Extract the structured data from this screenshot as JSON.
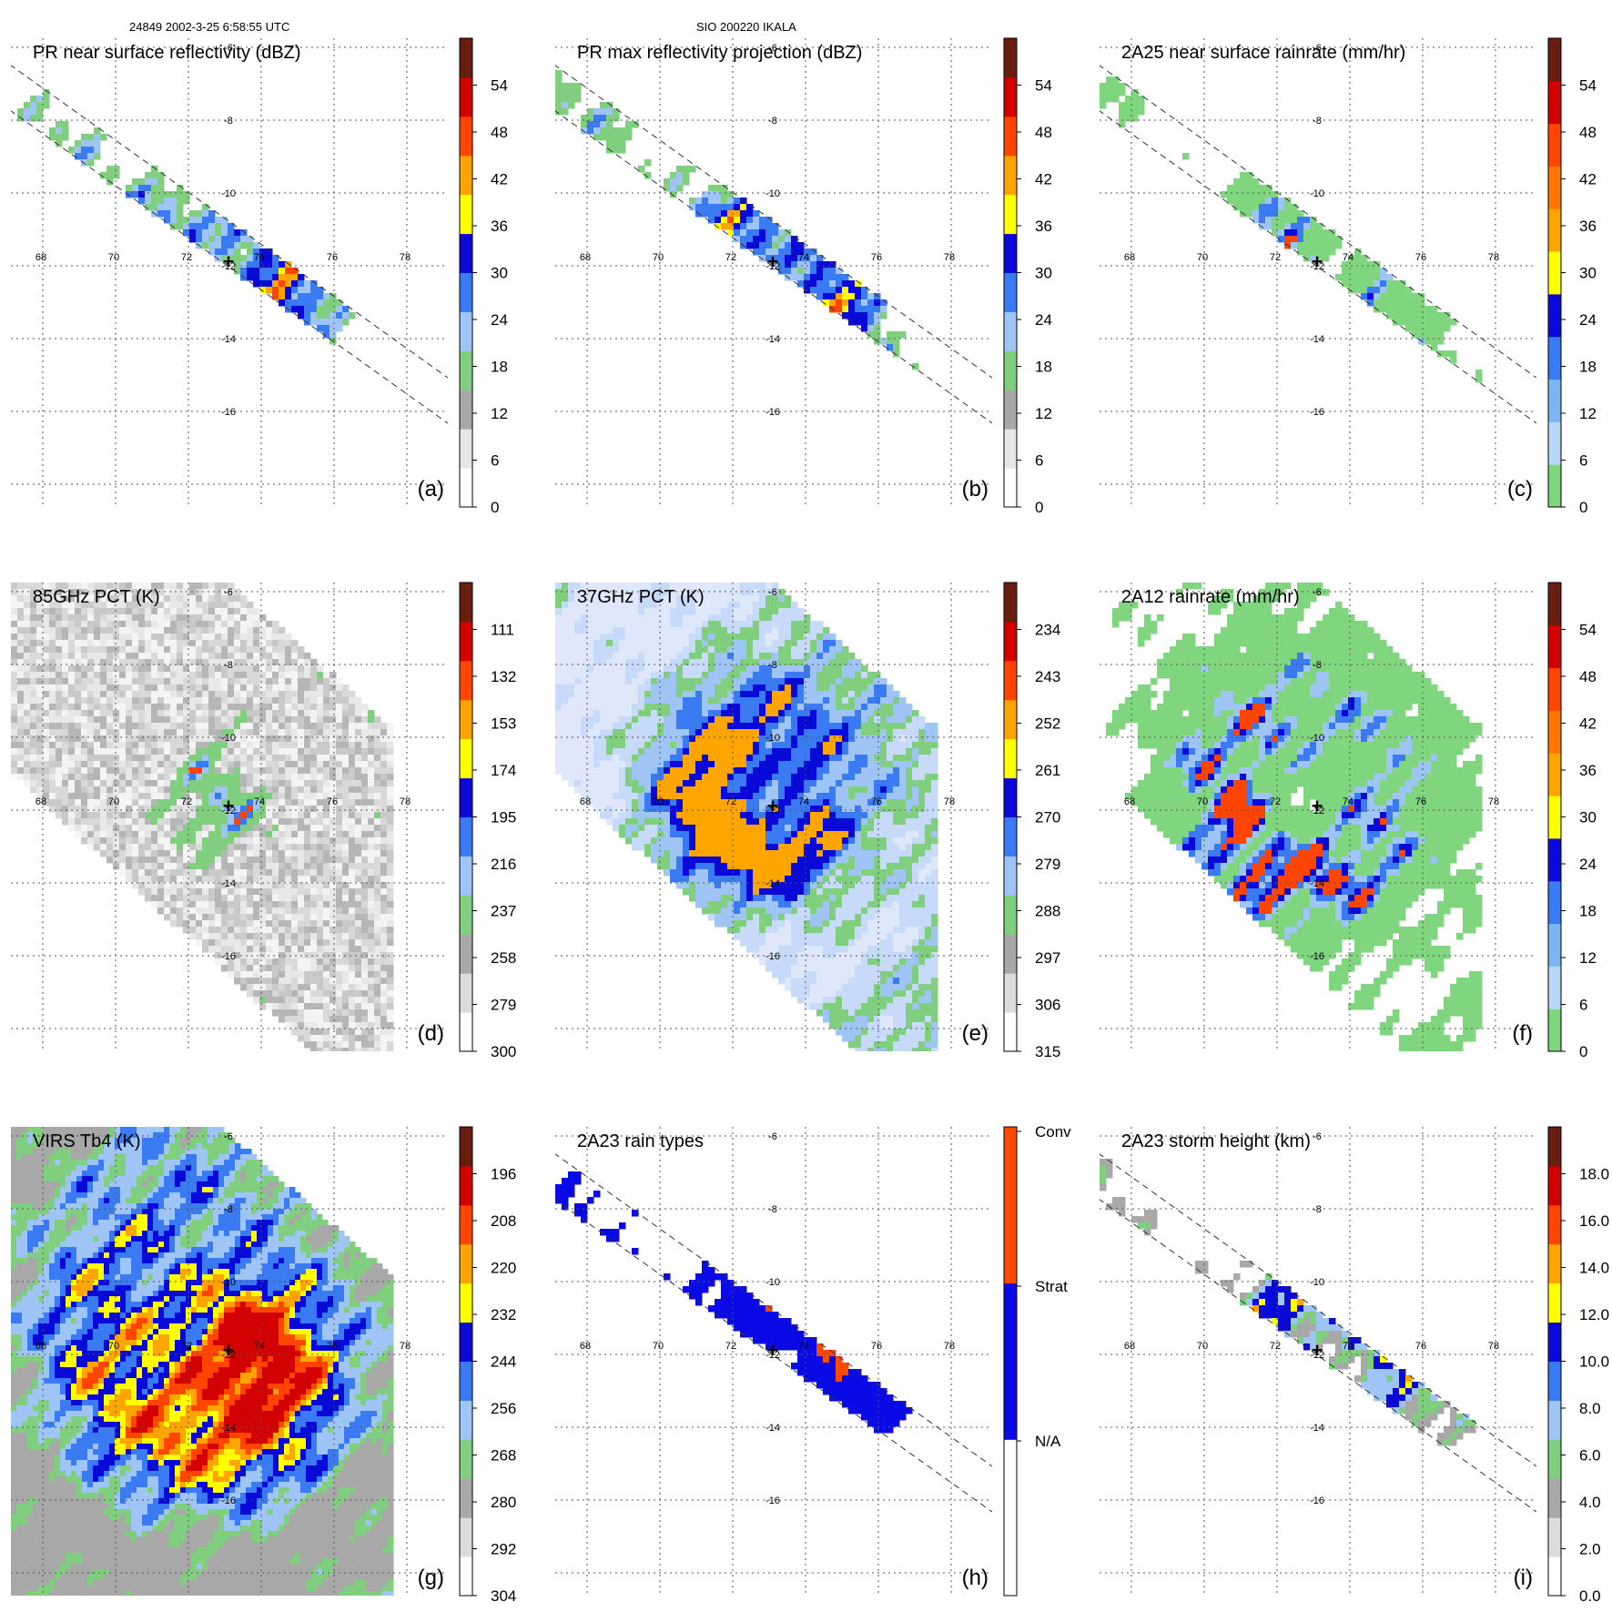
{
  "header": {
    "orbit_time": "24849 2002-3-25 6:58:55 UTC",
    "storm": "SIO 200220 IKALA"
  },
  "lon_ticks": [
    "68",
    "70",
    "72",
    "74",
    "76",
    "78"
  ],
  "lat_ticks": [
    "-6",
    "-8",
    "-10",
    "-12",
    "-14",
    "-16"
  ],
  "storm_center": {
    "lon": 73.1,
    "lat": -11.9
  },
  "chart_data": [
    {
      "type": "heatmap",
      "panel": "(a)",
      "title": "PR near surface reflectivity (dBZ)",
      "swath": "pr",
      "scheme": "dbz",
      "colorbar": {
        "labels": [
          "0",
          "6",
          "12",
          "18",
          "24",
          "30",
          "36",
          "42",
          "48",
          "54"
        ],
        "colors": [
          "#ffffff",
          "#e6e6e6",
          "#a8a8a8",
          "#7fcf7f",
          "#9ec5f5",
          "#3a7af2",
          "#0a0ad8",
          "#ffff00",
          "#ffa500",
          "#ff4500",
          "#d20000",
          "#6a1e10"
        ]
      }
    },
    {
      "type": "heatmap",
      "panel": "(b)",
      "title": "PR max reflectivity projection (dBZ)",
      "swath": "pr",
      "scheme": "dbz",
      "colorbar": {
        "labels": [
          "0",
          "6",
          "12",
          "18",
          "24",
          "30",
          "36",
          "42",
          "48",
          "54"
        ],
        "colors": [
          "#ffffff",
          "#e6e6e6",
          "#a8a8a8",
          "#7fcf7f",
          "#9ec5f5",
          "#3a7af2",
          "#0a0ad8",
          "#ffff00",
          "#ffa500",
          "#ff4500",
          "#d20000",
          "#6a1e10"
        ]
      }
    },
    {
      "type": "heatmap",
      "panel": "(c)",
      "title": "2A25 near surface rainrate (mm/hr)",
      "swath": "pr",
      "scheme": "rain",
      "colorbar": {
        "labels": [
          "0",
          "6",
          "12",
          "18",
          "24",
          "30",
          "36",
          "42",
          "48",
          "54"
        ],
        "colors": [
          "#7fd67f",
          "#b8d8f8",
          "#7ab6f2",
          "#3a7af2",
          "#0a0ad8",
          "#ffff00",
          "#ffa500",
          "#ff7700",
          "#ff4500",
          "#d20000",
          "#6a1e10"
        ]
      }
    },
    {
      "type": "heatmap",
      "panel": "(d)",
      "title": "85GHz PCT (K)",
      "swath": "tmi",
      "scheme": "pct85",
      "colorbar": {
        "labels": [
          "300",
          "279",
          "258",
          "237",
          "216",
          "195",
          "174",
          "153",
          "132",
          "111"
        ],
        "colors": [
          "#ffffff",
          "#dcdcdc",
          "#a8a8a8",
          "#7fcf7f",
          "#9ec5f5",
          "#3a7af2",
          "#0a0ad8",
          "#ffff00",
          "#ffa500",
          "#ff4500",
          "#d20000",
          "#6a1e10"
        ]
      }
    },
    {
      "type": "heatmap",
      "panel": "(e)",
      "title": "37GHz PCT (K)",
      "swath": "tmi",
      "scheme": "pct37",
      "colorbar": {
        "labels": [
          "315",
          "306",
          "297",
          "288",
          "279",
          "270",
          "261",
          "252",
          "243",
          "234"
        ],
        "colors": [
          "#ffffff",
          "#dcdcdc",
          "#a8a8a8",
          "#7fcf7f",
          "#9ec5f5",
          "#3a7af2",
          "#0a0ad8",
          "#ffff00",
          "#ffa500",
          "#ff4500",
          "#d20000",
          "#6a1e10"
        ]
      }
    },
    {
      "type": "heatmap",
      "panel": "(f)",
      "title": "2A12 rainrate (mm/hr)",
      "swath": "tmi",
      "scheme": "rain12",
      "colorbar": {
        "labels": [
          "0",
          "6",
          "12",
          "18",
          "24",
          "30",
          "36",
          "42",
          "48",
          "54"
        ],
        "colors": [
          "#7fd67f",
          "#b8d8f8",
          "#7ab6f2",
          "#3a7af2",
          "#0a0ad8",
          "#ffff00",
          "#ffa500",
          "#ff7700",
          "#ff4500",
          "#d20000",
          "#6a1e10"
        ]
      }
    },
    {
      "type": "heatmap",
      "panel": "(g)",
      "title": "VIRS Tb4 (K)",
      "swath": "virs",
      "scheme": "virs",
      "colorbar": {
        "labels": [
          "304",
          "292",
          "280",
          "268",
          "256",
          "244",
          "232",
          "220",
          "208",
          "196"
        ],
        "colors": [
          "#ffffff",
          "#dcdcdc",
          "#a8a8a8",
          "#7fcf7f",
          "#9ec5f5",
          "#3a7af2",
          "#0a0ad8",
          "#ffff00",
          "#ffa500",
          "#ff4500",
          "#d20000",
          "#6a1e10"
        ]
      }
    },
    {
      "type": "heatmap",
      "panel": "(h)",
      "title": "2A23 rain types",
      "swath": "pr",
      "scheme": "types",
      "colorbar": {
        "labels": [
          "N/A",
          "Strat",
          "Conv"
        ],
        "colors": [
          "#ffffff",
          "#0a0ae6",
          "#ff4a00"
        ],
        "categorical": true
      }
    },
    {
      "type": "heatmap",
      "panel": "(i)",
      "title": "2A23 storm height (km)",
      "swath": "pr",
      "scheme": "height",
      "colorbar": {
        "labels": [
          "0.0",
          "2.0",
          "4.0",
          "6.0",
          "8.0",
          "10.0",
          "12.0",
          "14.0",
          "16.0",
          "18.0"
        ],
        "colors": [
          "#ffffff",
          "#dcdcdc",
          "#a8a8a8",
          "#7fcf7f",
          "#9ec5f5",
          "#3a7af2",
          "#0a0ad8",
          "#ffff00",
          "#ffa500",
          "#ff4500",
          "#d20000",
          "#6a1e10"
        ]
      }
    }
  ]
}
